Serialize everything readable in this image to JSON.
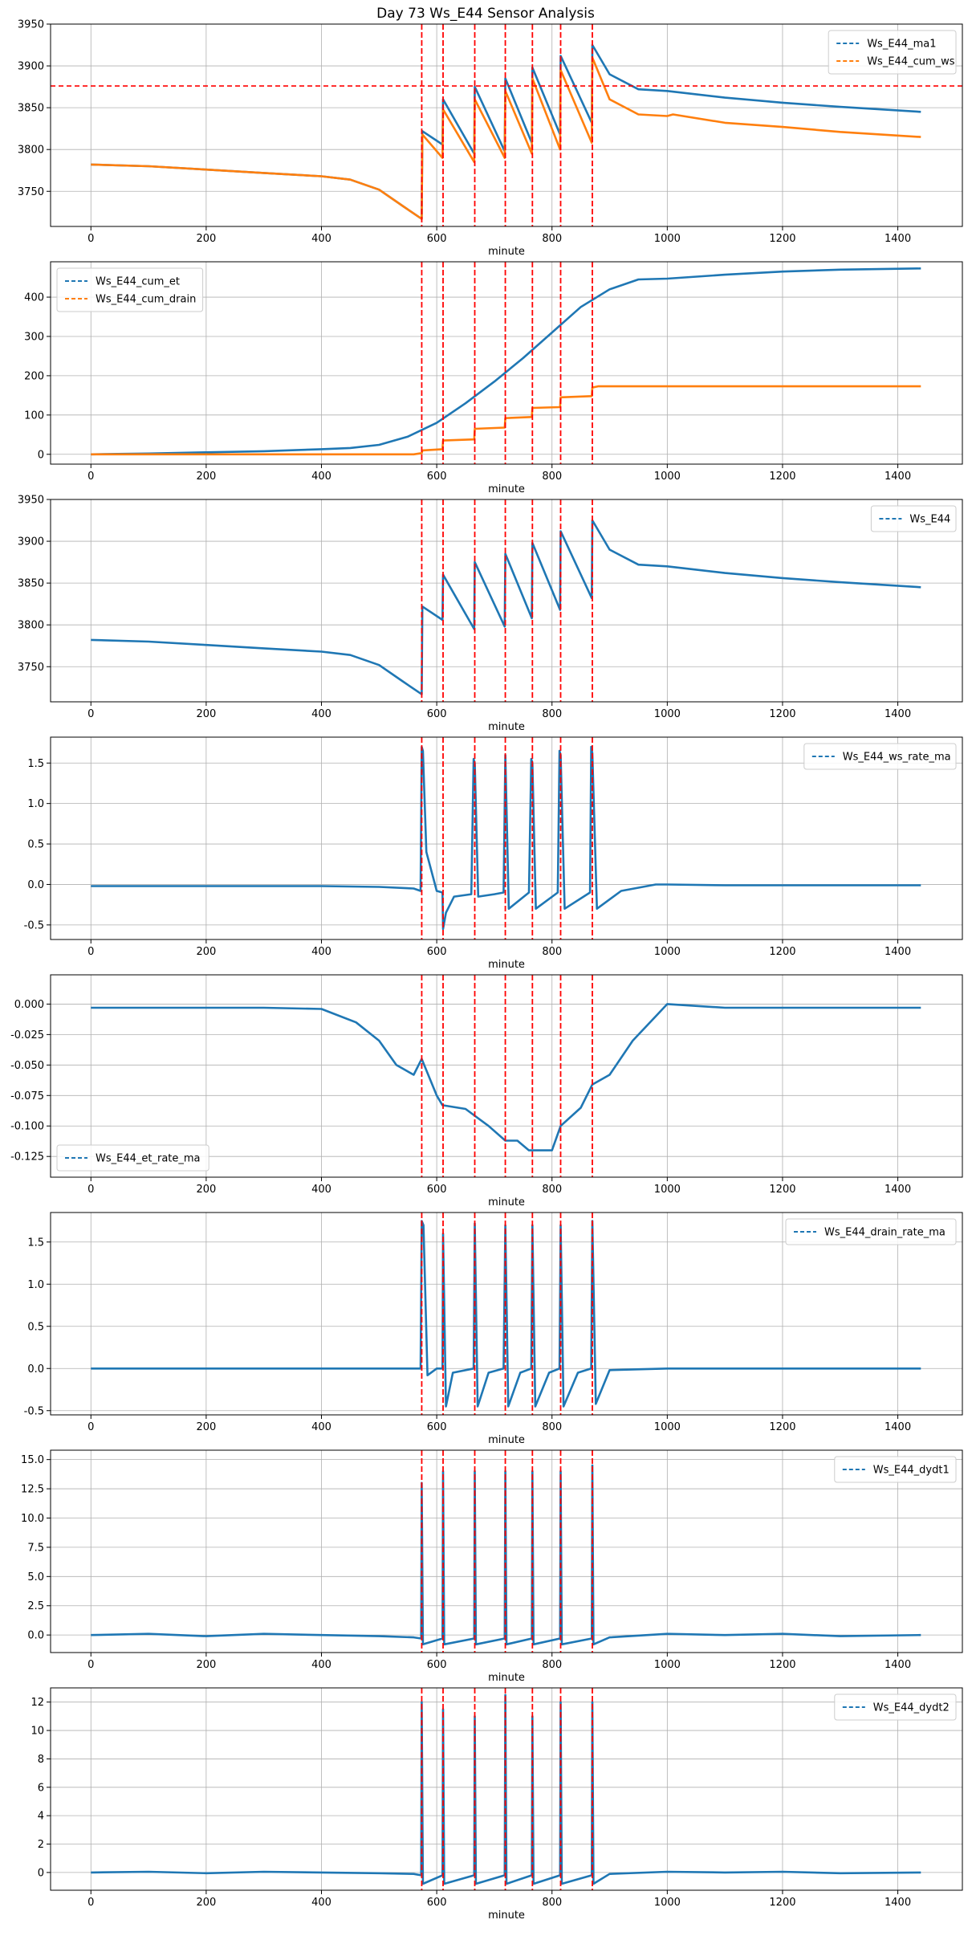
{
  "figure_title": "Day 73 Ws_E44 Sensor Analysis",
  "colors": {
    "blue": "#1f77b4",
    "orange": "#ff7f0e",
    "red": "#ff0000",
    "grid": "#b0b0b0"
  },
  "event_markers": [
    574,
    611,
    666,
    719,
    766,
    815,
    870
  ],
  "chart_data": [
    {
      "type": "line",
      "title": "",
      "xlabel": "minute",
      "ylabel": "",
      "xlim": [
        -70,
        1512
      ],
      "ylim": [
        3708,
        3950
      ],
      "xticks": [
        0,
        200,
        400,
        600,
        800,
        1000,
        1200,
        1400
      ],
      "xtick_labels": [
        "0",
        "200",
        "400",
        "600",
        "800",
        "1000",
        "1200",
        "1400"
      ],
      "yticks": [
        3750,
        3800,
        3850,
        3900,
        3950
      ],
      "ytick_labels": [
        "3750",
        "3800",
        "3850",
        "3900",
        "3950"
      ],
      "legend_loc": "top-right",
      "hline": 3876,
      "series": [
        {
          "name": "Ws_E44_ma1",
          "color": "#1f77b4",
          "x": [
            0,
            100,
            200,
            300,
            400,
            450,
            500,
            540,
            574,
            575,
            610,
            611,
            665,
            666,
            718,
            719,
            765,
            766,
            814,
            815,
            869,
            870,
            900,
            950,
            1000,
            1100,
            1200,
            1300,
            1440
          ],
          "y": [
            3782,
            3780,
            3776,
            3772,
            3768,
            3764,
            3752,
            3733,
            3717,
            3822,
            3806,
            3860,
            3795,
            3875,
            3798,
            3885,
            3808,
            3898,
            3818,
            3912,
            3832,
            3925,
            3890,
            3872,
            3870,
            3862,
            3856,
            3851,
            3845
          ]
        },
        {
          "name": "Ws_E44_cum_ws",
          "color": "#ff7f0e",
          "x": [
            0,
            100,
            200,
            300,
            400,
            450,
            500,
            540,
            574,
            575,
            610,
            611,
            665,
            666,
            718,
            719,
            765,
            766,
            814,
            815,
            869,
            870,
            900,
            950,
            1000,
            1010,
            1100,
            1200,
            1300,
            1440
          ],
          "y": [
            3782,
            3780,
            3776,
            3772,
            3768,
            3764,
            3752,
            3733,
            3717,
            3818,
            3790,
            3848,
            3785,
            3860,
            3790,
            3870,
            3795,
            3885,
            3800,
            3895,
            3808,
            3910,
            3860,
            3842,
            3840,
            3842,
            3832,
            3827,
            3821,
            3815
          ]
        }
      ]
    },
    {
      "type": "line",
      "title": "",
      "xlabel": "minute",
      "ylabel": "",
      "xlim": [
        -70,
        1512
      ],
      "ylim": [
        -25,
        490
      ],
      "xticks": [
        0,
        200,
        400,
        600,
        800,
        1000,
        1200,
        1400
      ],
      "xtick_labels": [
        "0",
        "200",
        "400",
        "600",
        "800",
        "1000",
        "1200",
        "1400"
      ],
      "yticks": [
        0,
        100,
        200,
        300,
        400
      ],
      "ytick_labels": [
        "0",
        "100",
        "200",
        "300",
        "400"
      ],
      "legend_loc": "top-left",
      "series": [
        {
          "name": "Ws_E44_cum_et",
          "color": "#1f77b4",
          "x": [
            0,
            100,
            200,
            300,
            400,
            450,
            500,
            550,
            600,
            650,
            700,
            750,
            800,
            850,
            900,
            950,
            1000,
            1100,
            1200,
            1300,
            1440
          ],
          "y": [
            0,
            2,
            5,
            8,
            13,
            16,
            24,
            45,
            80,
            130,
            185,
            245,
            310,
            375,
            420,
            445,
            447,
            457,
            465,
            470,
            473
          ]
        },
        {
          "name": "Ws_E44_cum_drain",
          "color": "#ff7f0e",
          "x": [
            0,
            560,
            574,
            575,
            610,
            611,
            665,
            666,
            718,
            719,
            765,
            766,
            814,
            815,
            869,
            870,
            880,
            1440
          ],
          "y": [
            0,
            0,
            3,
            10,
            13,
            35,
            38,
            65,
            68,
            92,
            95,
            118,
            120,
            145,
            148,
            170,
            173,
            173
          ]
        }
      ]
    },
    {
      "type": "line",
      "title": "",
      "xlabel": "minute",
      "ylabel": "",
      "xlim": [
        -70,
        1512
      ],
      "ylim": [
        3708,
        3950
      ],
      "xticks": [
        0,
        200,
        400,
        600,
        800,
        1000,
        1200,
        1400
      ],
      "xtick_labels": [
        "0",
        "200",
        "400",
        "600",
        "800",
        "1000",
        "1200",
        "1400"
      ],
      "yticks": [
        3750,
        3800,
        3850,
        3900,
        3950
      ],
      "ytick_labels": [
        "3750",
        "3800",
        "3850",
        "3900",
        "3950"
      ],
      "legend_loc": "top-right",
      "series": [
        {
          "name": "Ws_E44",
          "color": "#1f77b4",
          "x": [
            0,
            100,
            200,
            300,
            400,
            450,
            500,
            540,
            574,
            575,
            610,
            611,
            665,
            666,
            718,
            719,
            765,
            766,
            814,
            815,
            869,
            870,
            900,
            950,
            1000,
            1100,
            1200,
            1300,
            1440
          ],
          "y": [
            3782,
            3780,
            3776,
            3772,
            3768,
            3764,
            3752,
            3733,
            3717,
            3822,
            3806,
            3860,
            3795,
            3875,
            3798,
            3885,
            3808,
            3898,
            3818,
            3912,
            3832,
            3925,
            3890,
            3872,
            3870,
            3862,
            3856,
            3851,
            3845
          ]
        }
      ]
    },
    {
      "type": "line",
      "title": "",
      "xlabel": "minute",
      "ylabel": "",
      "xlim": [
        -70,
        1512
      ],
      "ylim": [
        -0.68,
        1.82
      ],
      "xticks": [
        0,
        200,
        400,
        600,
        800,
        1000,
        1200,
        1400
      ],
      "xtick_labels": [
        "0",
        "200",
        "400",
        "600",
        "800",
        "1000",
        "1200",
        "1400"
      ],
      "yticks": [
        -0.5,
        0.0,
        0.5,
        1.0,
        1.5
      ],
      "ytick_labels": [
        "-0.5",
        "0.0",
        "0.5",
        "1.0",
        "1.5"
      ],
      "legend_loc": "top-right",
      "series": [
        {
          "name": "Ws_E44_ws_rate_ma",
          "color": "#1f77b4",
          "dashed": true,
          "x": [
            0,
            100,
            200,
            300,
            400,
            500,
            560,
            572,
            574,
            576,
            582,
            600,
            610,
            611,
            616,
            630,
            660,
            664,
            666,
            672,
            700,
            716,
            719,
            725,
            760,
            764,
            766,
            772,
            810,
            813,
            815,
            822,
            866,
            868,
            870,
            878,
            920,
            980,
            1000,
            1100,
            1200,
            1300,
            1440
          ],
          "y": [
            -0.02,
            -0.02,
            -0.02,
            -0.02,
            -0.02,
            -0.03,
            -0.05,
            -0.08,
            1.7,
            1.65,
            0.4,
            -0.08,
            -0.1,
            -0.55,
            -0.35,
            -0.15,
            -0.12,
            1.55,
            1.5,
            -0.15,
            -0.12,
            -0.1,
            1.6,
            -0.3,
            -0.1,
            1.55,
            1.5,
            -0.3,
            -0.1,
            1.65,
            1.6,
            -0.3,
            -0.1,
            1.7,
            1.62,
            -0.3,
            -0.08,
            0.0,
            0.0,
            -0.01,
            -0.01,
            -0.01,
            -0.01
          ]
        }
      ]
    },
    {
      "type": "line",
      "title": "",
      "xlabel": "minute",
      "ylabel": "",
      "xlim": [
        -70,
        1512
      ],
      "ylim": [
        -0.142,
        0.024
      ],
      "xticks": [
        0,
        200,
        400,
        600,
        800,
        1000,
        1200,
        1400
      ],
      "xtick_labels": [
        "0",
        "200",
        "400",
        "600",
        "800",
        "1000",
        "1200",
        "1400"
      ],
      "yticks": [
        -0.125,
        -0.1,
        -0.075,
        -0.05,
        -0.025,
        0.0
      ],
      "ytick_labels": [
        "-0.125",
        "-0.100",
        "-0.075",
        "-0.050",
        "-0.025",
        "0.000"
      ],
      "legend_loc": "bottom-left",
      "series": [
        {
          "name": "Ws_E44_et_rate_ma",
          "color": "#1f77b4",
          "dashed": true,
          "x": [
            0,
            100,
            200,
            300,
            400,
            460,
            500,
            530,
            560,
            574,
            600,
            610,
            650,
            690,
            719,
            740,
            760,
            800,
            815,
            850,
            870,
            900,
            940,
            980,
            1000,
            1100,
            1200,
            1300,
            1440
          ],
          "y": [
            -0.003,
            -0.003,
            -0.003,
            -0.003,
            -0.004,
            -0.015,
            -0.03,
            -0.05,
            -0.058,
            -0.045,
            -0.075,
            -0.083,
            -0.086,
            -0.1,
            -0.112,
            -0.112,
            -0.12,
            -0.12,
            -0.1,
            -0.085,
            -0.066,
            -0.058,
            -0.03,
            -0.01,
            0.0,
            -0.003,
            -0.003,
            -0.003,
            -0.003
          ]
        }
      ]
    },
    {
      "type": "line",
      "title": "",
      "xlabel": "minute",
      "ylabel": "",
      "xlim": [
        -70,
        1512
      ],
      "ylim": [
        -0.55,
        1.85
      ],
      "xticks": [
        0,
        200,
        400,
        600,
        800,
        1000,
        1200,
        1400
      ],
      "xtick_labels": [
        "0",
        "200",
        "400",
        "600",
        "800",
        "1000",
        "1200",
        "1400"
      ],
      "yticks": [
        -0.5,
        0.0,
        0.5,
        1.0,
        1.5
      ],
      "ytick_labels": [
        "-0.5",
        "0.0",
        "0.5",
        "1.0",
        "1.5"
      ],
      "legend_loc": "top-right",
      "series": [
        {
          "name": "Ws_E44_drain_rate_ma",
          "color": "#1f77b4",
          "dashed": true,
          "x": [
            0,
            200,
            400,
            560,
            572,
            574,
            577,
            584,
            600,
            610,
            611,
            616,
            628,
            664,
            666,
            671,
            690,
            716,
            719,
            724,
            745,
            764,
            766,
            771,
            795,
            813,
            815,
            820,
            845,
            868,
            870,
            876,
            900,
            1000,
            1200,
            1440
          ],
          "y": [
            0,
            0,
            0,
            0,
            0,
            1.75,
            1.7,
            -0.08,
            0.0,
            0.0,
            1.6,
            -0.45,
            -0.05,
            0.0,
            1.72,
            -0.45,
            -0.05,
            0.0,
            1.7,
            -0.45,
            -0.05,
            0.0,
            1.7,
            -0.45,
            -0.05,
            0.0,
            1.7,
            -0.45,
            -0.05,
            0.0,
            1.75,
            -0.42,
            -0.02,
            0,
            0,
            0
          ]
        }
      ]
    },
    {
      "type": "line",
      "title": "",
      "xlabel": "minute",
      "ylabel": "",
      "xlim": [
        -70,
        1512
      ],
      "ylim": [
        -1.5,
        15.8
      ],
      "xticks": [
        0,
        200,
        400,
        600,
        800,
        1000,
        1200,
        1400
      ],
      "xtick_labels": [
        "0",
        "200",
        "400",
        "600",
        "800",
        "1000",
        "1200",
        "1400"
      ],
      "yticks": [
        0.0,
        2.5,
        5.0,
        7.5,
        10.0,
        12.5,
        15.0
      ],
      "ytick_labels": [
        "0.0",
        "2.5",
        "5.0",
        "7.5",
        "10.0",
        "12.5",
        "15.0"
      ],
      "legend_loc": "top-right",
      "series": [
        {
          "name": "Ws_E44_dydt1",
          "color": "#1f77b4",
          "dashed": true,
          "x": [
            0,
            100,
            200,
            300,
            400,
            500,
            560,
            573,
            574,
            576,
            610,
            611,
            613,
            665,
            666,
            668,
            718,
            719,
            721,
            765,
            766,
            768,
            814,
            815,
            817,
            869,
            870,
            872,
            900,
            1000,
            1100,
            1200,
            1300,
            1440
          ],
          "y": [
            0,
            0.1,
            -0.1,
            0.1,
            0,
            -0.1,
            -0.2,
            -0.3,
            13,
            -0.8,
            -0.3,
            14,
            -0.8,
            -0.3,
            14,
            -0.8,
            -0.3,
            14,
            -0.8,
            -0.3,
            14,
            -0.8,
            -0.3,
            14,
            -0.8,
            -0.3,
            14.5,
            -0.8,
            -0.2,
            0.1,
            0,
            0.1,
            -0.1,
            0
          ]
        }
      ]
    },
    {
      "type": "line",
      "title": "",
      "xlabel": "minute",
      "ylabel": "",
      "xlim": [
        -70,
        1512
      ],
      "ylim": [
        -1.25,
        13.0
      ],
      "xticks": [
        0,
        200,
        400,
        600,
        800,
        1000,
        1200,
        1400
      ],
      "xtick_labels": [
        "0",
        "200",
        "400",
        "600",
        "800",
        "1000",
        "1200",
        "1400"
      ],
      "yticks": [
        0,
        2,
        4,
        6,
        8,
        10,
        12
      ],
      "ytick_labels": [
        "0",
        "2",
        "4",
        "6",
        "8",
        "10",
        "12"
      ],
      "legend_loc": "top-right",
      "series": [
        {
          "name": "Ws_E44_dydt2",
          "color": "#1f77b4",
          "dashed": true,
          "x": [
            0,
            100,
            200,
            300,
            400,
            500,
            560,
            573,
            574,
            576,
            610,
            611,
            613,
            665,
            666,
            668,
            718,
            719,
            721,
            765,
            766,
            768,
            814,
            815,
            817,
            869,
            870,
            872,
            900,
            1000,
            1100,
            1200,
            1300,
            1440
          ],
          "y": [
            0,
            0.05,
            -0.05,
            0.05,
            0,
            -0.05,
            -0.1,
            -0.2,
            12,
            -0.8,
            -0.2,
            11.5,
            -0.8,
            -0.2,
            11,
            -0.8,
            -0.2,
            12.5,
            -0.8,
            -0.2,
            11,
            -0.8,
            -0.2,
            12,
            -0.8,
            -0.2,
            12,
            -0.8,
            -0.1,
            0.05,
            0,
            0.05,
            -0.05,
            0
          ]
        }
      ]
    }
  ]
}
